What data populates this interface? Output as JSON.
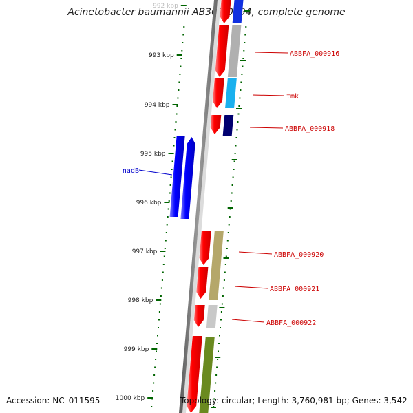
{
  "title": "Acinetobacter baumannii AB307-0294, complete genome",
  "footer": {
    "accession_label": "Accession:",
    "accession": "NC_011595",
    "topology_label": "Topology:",
    "topology": "circular",
    "length_label": "Length:",
    "length": "3,760,981 bp",
    "genes_label": "Genes:",
    "genes": "3,542"
  },
  "scale": {
    "unit": "kbp",
    "ticks": [
      "992 kbp",
      "993 kbp",
      "994 kbp",
      "995 kbp",
      "996 kbp",
      "997 kbp",
      "998 kbp",
      "999 kbp",
      "1000 kbp"
    ]
  },
  "genes": [
    {
      "label": "ABBFA_000916",
      "strand": "forward",
      "color": "#ff0000"
    },
    {
      "label": "tmk",
      "strand": "forward",
      "color": "#ff0000"
    },
    {
      "label": "ABBFA_000918",
      "strand": "forward",
      "color": "#ff0000"
    },
    {
      "label": "nadB",
      "strand": "reverse",
      "color": "#0000ff"
    },
    {
      "label": "ABBFA_000920",
      "strand": "forward",
      "color": "#ff0000"
    },
    {
      "label": "ABBFA_000921",
      "strand": "forward",
      "color": "#ff0000"
    },
    {
      "label": "ABBFA_000922",
      "strand": "forward",
      "color": "#ff0000"
    }
  ],
  "colors": {
    "backbone": "#808080",
    "cds_forward": "#ff0000",
    "cds_reverse": "#0000ff",
    "label_forward": "#cc0000",
    "label_reverse": "#0000cc",
    "tick": "#006400",
    "category_gray": "#b0b0b0",
    "category_cyan": "#1ab0ee",
    "category_navy": "#000070",
    "category_khaki": "#b5a76a",
    "category_lightgray": "#c8c8c8",
    "category_olive": "#6a8a20",
    "category_blue": "#1030e0"
  }
}
